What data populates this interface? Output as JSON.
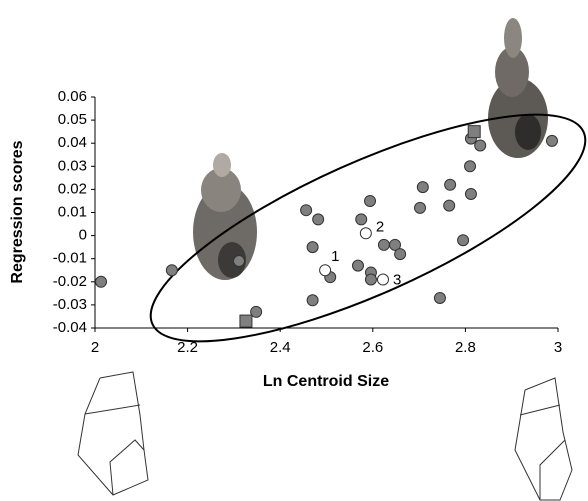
{
  "chart_data": {
    "type": "scatter",
    "x_label": "Ln Centroid Size",
    "y_label": "Regression scores",
    "xlim": [
      2,
      3
    ],
    "ylim": [
      -0.04,
      0.06
    ],
    "xticks": [
      2,
      2.2,
      2.4,
      2.6,
      2.8,
      3
    ],
    "yticks": [
      -0.04,
      -0.03,
      -0.02,
      -0.01,
      0,
      0.01,
      0.02,
      0.03,
      0.04,
      0.05,
      0.06
    ],
    "series": [
      {
        "marker": "circle",
        "color": "#7f7f7f",
        "edge": "#333333",
        "x": [
          2.013,
          2.166,
          2.311,
          2.348,
          2.456,
          2.482,
          2.47,
          2.47,
          2.508,
          2.575,
          2.594,
          2.568,
          2.596,
          2.596,
          2.624,
          2.648,
          2.659,
          2.702,
          2.708,
          2.745,
          2.767,
          2.765,
          2.795,
          2.812,
          2.81,
          2.812,
          2.832,
          2.987
        ],
        "values": [
          -0.02,
          -0.015,
          -0.011,
          -0.033,
          0.011,
          0.007,
          -0.005,
          -0.028,
          -0.018,
          0.007,
          0.015,
          -0.013,
          -0.016,
          -0.019,
          -0.004,
          -0.004,
          -0.008,
          0.012,
          0.021,
          -0.027,
          0.022,
          0.013,
          -0.002,
          0.018,
          0.03,
          0.042,
          0.039,
          0.041
        ]
      },
      {
        "marker": "circle",
        "color": "#ffffff",
        "edge": "#333333",
        "x": [
          2.497,
          2.585,
          2.622
        ],
        "values": [
          -0.015,
          0.001,
          -0.019
        ],
        "point_labels": [
          "1",
          "2",
          "3"
        ]
      },
      {
        "marker": "square",
        "color": "#7f7f7f",
        "edge": "#333333",
        "x": [
          2.326,
          2.819
        ],
        "values": [
          -0.037,
          0.045
        ]
      }
    ]
  }
}
